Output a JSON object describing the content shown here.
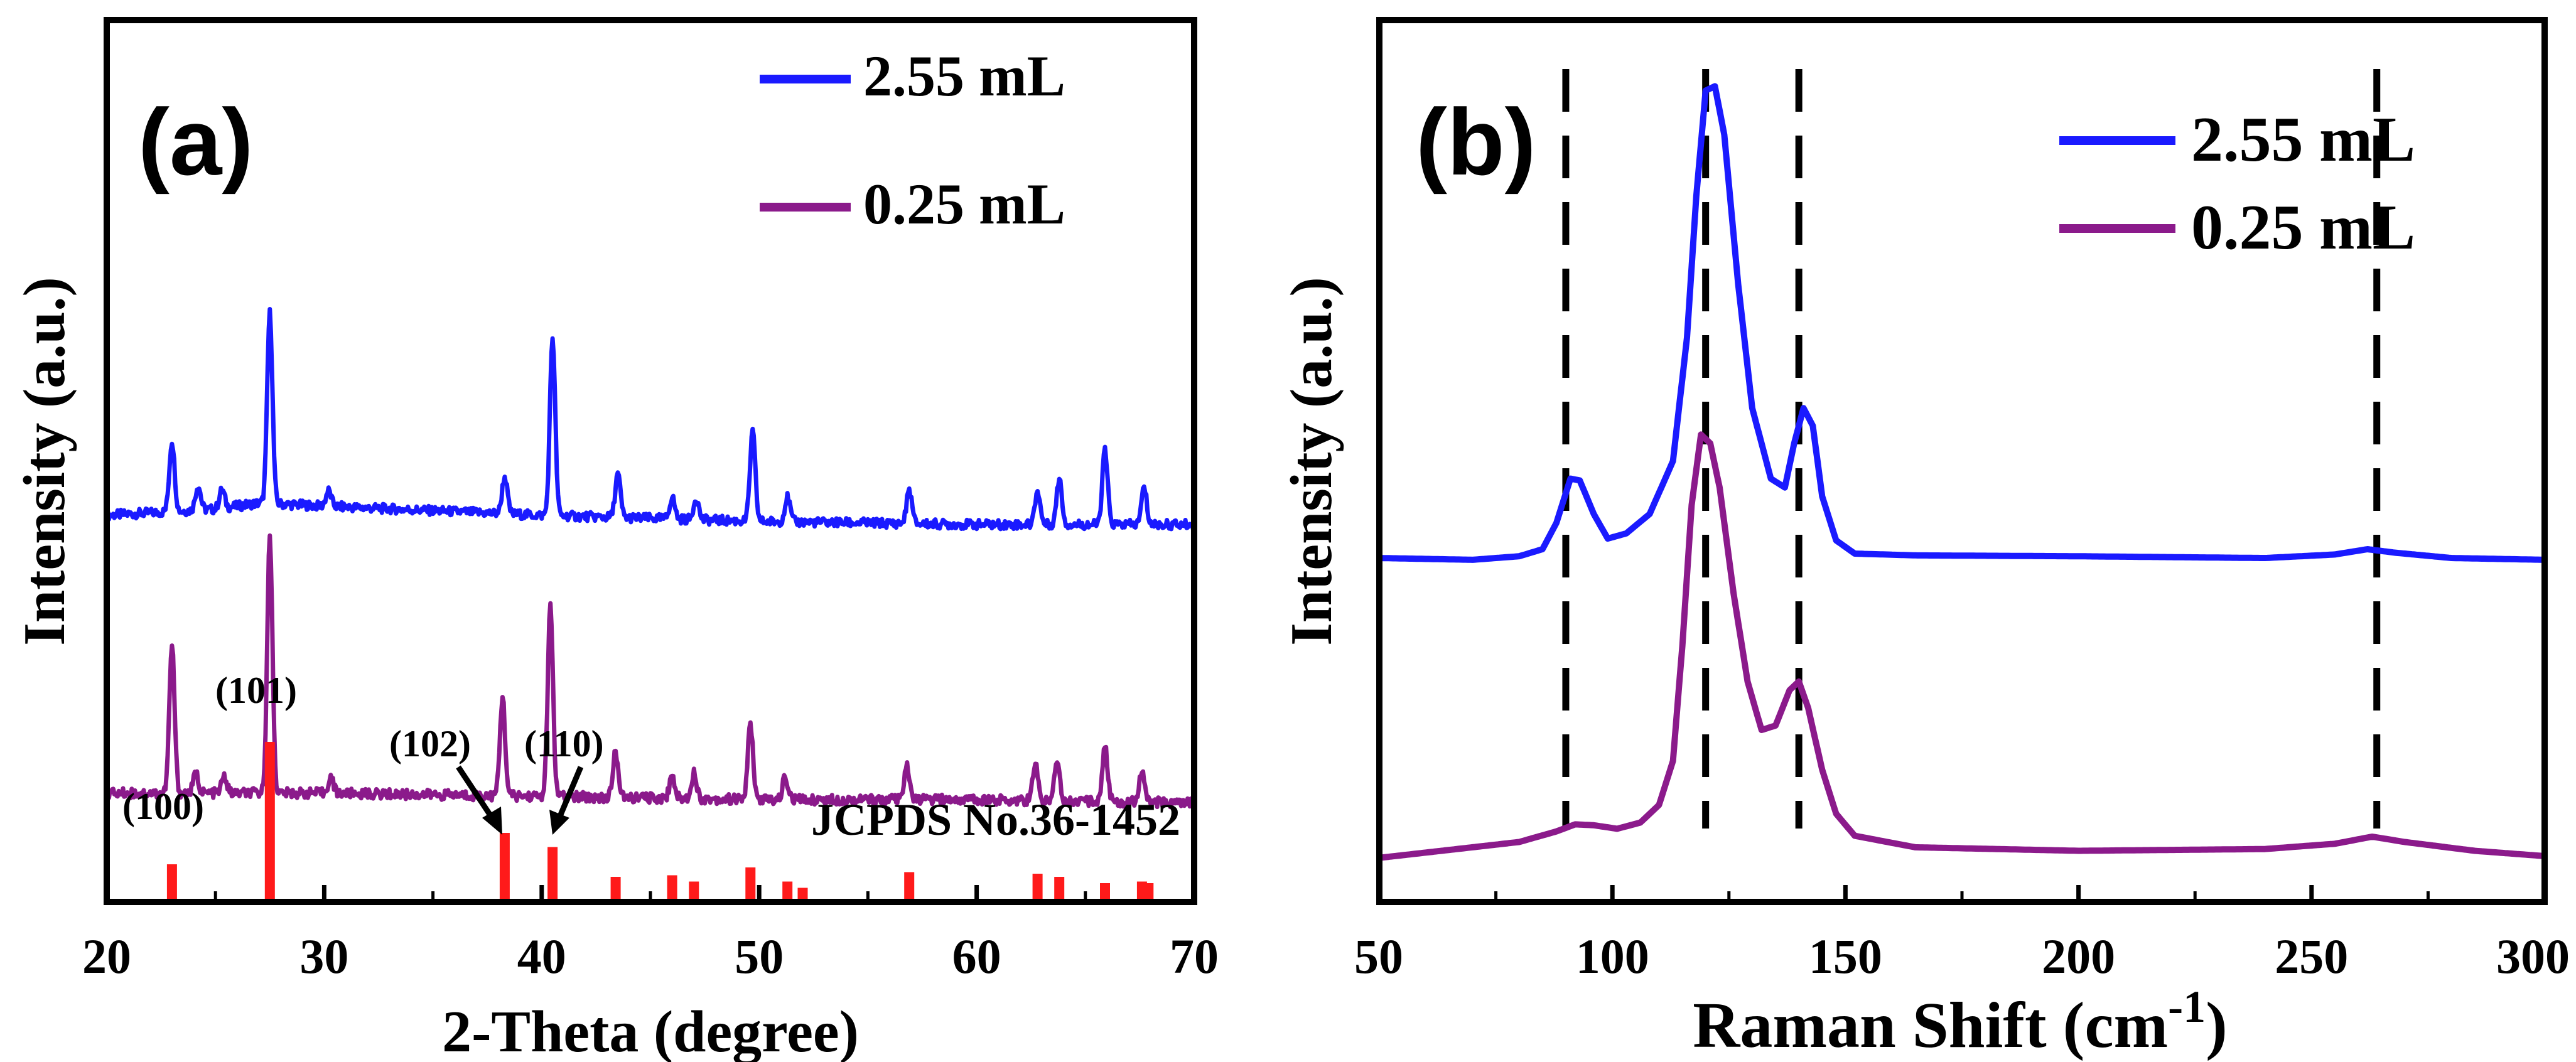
{
  "colors": {
    "blue": "#1a1aff",
    "purple": "#8b1a8b",
    "red": "#ff1a1a",
    "axis": "#000000",
    "dash": "#000000"
  },
  "chart_data": [
    {
      "panel_label": "(a)",
      "type": "line",
      "xlabel": "2-Theta (degree)",
      "ylabel": "Intensity (a.u.)",
      "xlim": [
        20,
        70
      ],
      "x_ticks": [
        "20",
        "30",
        "40",
        "50",
        "60",
        "70"
      ],
      "legend": {
        "placement": "top-right",
        "entries": [
          "2.55 mL",
          "0.25 mL"
        ]
      },
      "series": [
        {
          "name": "2.55 mL",
          "color": "blue",
          "baseline": [
            [
              20,
              0.1
            ],
            [
              25,
              0.12
            ],
            [
              27,
              0.14
            ],
            [
              30,
              0.13
            ],
            [
              40,
              0.1
            ],
            [
              50,
              0.08
            ],
            [
              60,
              0.07
            ],
            [
              70,
              0.07
            ]
          ],
          "peaks": [
            [
              23.0,
              0.23
            ],
            [
              24.2,
              0.08
            ],
            [
              25.3,
              0.06
            ],
            [
              27.5,
              0.62
            ],
            [
              30.2,
              0.05
            ],
            [
              38.3,
              0.12
            ],
            [
              40.5,
              0.58
            ],
            [
              43.5,
              0.14
            ],
            [
              46.0,
              0.07
            ],
            [
              47.1,
              0.07
            ],
            [
              49.7,
              0.29
            ],
            [
              51.3,
              0.08
            ],
            [
              56.9,
              0.11
            ],
            [
              62.8,
              0.11
            ],
            [
              63.8,
              0.15
            ],
            [
              65.9,
              0.24
            ],
            [
              67.7,
              0.12
            ]
          ]
        },
        {
          "name": "0.25 mL",
          "color": "purple",
          "baseline": [
            [
              20,
              0.07
            ],
            [
              30,
              0.07
            ],
            [
              40,
              0.06
            ],
            [
              50,
              0.05
            ],
            [
              60,
              0.05
            ],
            [
              70,
              0.04
            ]
          ],
          "peaks": [
            [
              23.0,
              0.45
            ],
            [
              24.1,
              0.06
            ],
            [
              25.4,
              0.05
            ],
            [
              27.5,
              0.78
            ],
            [
              30.3,
              0.05
            ],
            [
              38.2,
              0.3
            ],
            [
              40.4,
              0.58
            ],
            [
              43.4,
              0.14
            ],
            [
              46.0,
              0.07
            ],
            [
              47.0,
              0.08
            ],
            [
              49.6,
              0.23
            ],
            [
              51.2,
              0.07
            ],
            [
              56.8,
              0.1
            ],
            [
              62.7,
              0.11
            ],
            [
              63.7,
              0.13
            ],
            [
              65.9,
              0.17
            ],
            [
              67.6,
              0.1
            ]
          ]
        }
      ],
      "reference": {
        "label": "JCPDS No.36-1452",
        "sticks": [
          {
            "x": 23.0,
            "h": 0.22,
            "hkl": "(100)"
          },
          {
            "x": 27.5,
            "h": 1.0,
            "hkl": "(101)"
          },
          {
            "x": 38.3,
            "h": 0.42,
            "hkl": "(102)"
          },
          {
            "x": 40.5,
            "h": 0.33,
            "hkl": "(110)"
          },
          {
            "x": 43.4,
            "h": 0.14,
            "hkl": ""
          },
          {
            "x": 46.0,
            "h": 0.15,
            "hkl": ""
          },
          {
            "x": 47.0,
            "h": 0.11,
            "hkl": ""
          },
          {
            "x": 49.6,
            "h": 0.2,
            "hkl": ""
          },
          {
            "x": 51.3,
            "h": 0.11,
            "hkl": ""
          },
          {
            "x": 52.0,
            "h": 0.07,
            "hkl": ""
          },
          {
            "x": 56.9,
            "h": 0.17,
            "hkl": ""
          },
          {
            "x": 62.8,
            "h": 0.16,
            "hkl": ""
          },
          {
            "x": 63.8,
            "h": 0.14,
            "hkl": ""
          },
          {
            "x": 65.9,
            "h": 0.1,
            "hkl": ""
          },
          {
            "x": 67.6,
            "h": 0.11,
            "hkl": ""
          },
          {
            "x": 67.9,
            "h": 0.1,
            "hkl": ""
          }
        ]
      }
    },
    {
      "panel_label": "(b)",
      "type": "line",
      "xlabel": "Raman Shift (cm",
      "xlabel_sup": "-1",
      "xlabel_end": ")",
      "ylabel": "Intensity (a.u.)",
      "xlim": [
        50,
        300
      ],
      "x_ticks": [
        "50",
        "100",
        "150",
        "200",
        "250",
        "300"
      ],
      "legend": {
        "placement": "top-right",
        "entries": [
          "2.55 mL",
          "0.25 mL"
        ]
      },
      "dashed_lines": [
        90,
        120,
        140,
        264
      ],
      "series": [
        {
          "name": "2.55 mL",
          "color": "blue",
          "points": [
            [
              50,
              0.39
            ],
            [
              70,
              0.388
            ],
            [
              80,
              0.392
            ],
            [
              85,
              0.4
            ],
            [
              88,
              0.43
            ],
            [
              91,
              0.48
            ],
            [
              93,
              0.478
            ],
            [
              96,
              0.44
            ],
            [
              99,
              0.412
            ],
            [
              103,
              0.418
            ],
            [
              108,
              0.44
            ],
            [
              113,
              0.5
            ],
            [
              116,
              0.64
            ],
            [
              118,
              0.8
            ],
            [
              120,
              0.92
            ],
            [
              122,
              0.925
            ],
            [
              124,
              0.87
            ],
            [
              127,
              0.7
            ],
            [
              130,
              0.56
            ],
            [
              134,
              0.48
            ],
            [
              137,
              0.47
            ],
            [
              139,
              0.52
            ],
            [
              141,
              0.56
            ],
            [
              143,
              0.54
            ],
            [
              145,
              0.46
            ],
            [
              148,
              0.41
            ],
            [
              152,
              0.395
            ],
            [
              165,
              0.393
            ],
            [
              200,
              0.392
            ],
            [
              240,
              0.39
            ],
            [
              255,
              0.394
            ],
            [
              262,
              0.4
            ],
            [
              268,
              0.396
            ],
            [
              280,
              0.39
            ],
            [
              300,
              0.388
            ]
          ]
        },
        {
          "name": "0.25 mL",
          "color": "purple",
          "points": [
            [
              50,
              0.05
            ],
            [
              70,
              0.062
            ],
            [
              80,
              0.068
            ],
            [
              88,
              0.08
            ],
            [
              92,
              0.088
            ],
            [
              96,
              0.087
            ],
            [
              101,
              0.083
            ],
            [
              106,
              0.09
            ],
            [
              110,
              0.11
            ],
            [
              113,
              0.16
            ],
            [
              115,
              0.29
            ],
            [
              117,
              0.45
            ],
            [
              119,
              0.53
            ],
            [
              121,
              0.52
            ],
            [
              123,
              0.47
            ],
            [
              126,
              0.35
            ],
            [
              129,
              0.25
            ],
            [
              132,
              0.195
            ],
            [
              135,
              0.2
            ],
            [
              138,
              0.24
            ],
            [
              140,
              0.25
            ],
            [
              142,
              0.22
            ],
            [
              145,
              0.15
            ],
            [
              148,
              0.1
            ],
            [
              152,
              0.075
            ],
            [
              165,
              0.062
            ],
            [
              200,
              0.058
            ],
            [
              240,
              0.06
            ],
            [
              255,
              0.066
            ],
            [
              263,
              0.074
            ],
            [
              270,
              0.068
            ],
            [
              285,
              0.058
            ],
            [
              300,
              0.052
            ]
          ]
        }
      ]
    }
  ]
}
